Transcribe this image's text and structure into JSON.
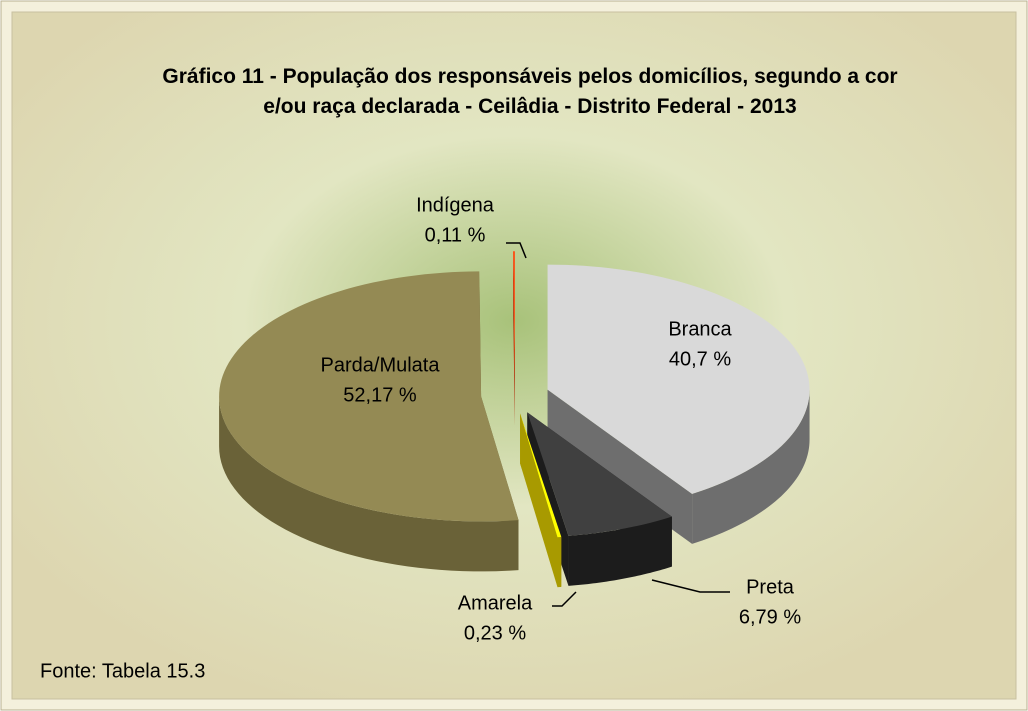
{
  "chart_data": {
    "type": "pie3d",
    "title": "Gráfico 11 - População dos responsáveis pelos domicílios, segundo a cor e/ou raça declarada - Ceilâdia - Distrito Federal - 2013",
    "categories": [
      "Branca",
      "Preta",
      "Amarela",
      "Parda/Mulata",
      "Indígena"
    ],
    "values": [
      40.7,
      6.79,
      0.23,
      52.17,
      0.11
    ],
    "value_labels": [
      "40,7 %",
      "6,79 %",
      "0,23 %",
      "52,17 %",
      "0,11 %"
    ],
    "colors": [
      "#d9d9d9",
      "#404040",
      "#ffff00",
      "#948a54",
      "#ff4a10"
    ],
    "side_colors": [
      "#6e6e6e",
      "#1c1c1c",
      "#a89a00",
      "#6a6238",
      "#b02000"
    ],
    "source": "Fonte: Tabela 15.3"
  }
}
